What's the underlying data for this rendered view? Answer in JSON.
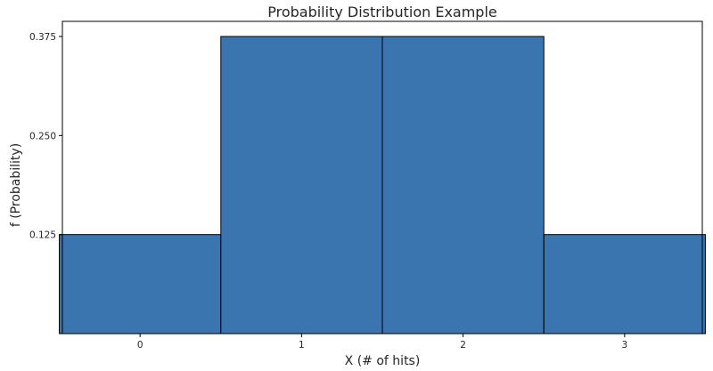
{
  "chart_data": {
    "type": "bar",
    "title": "Probability Distribution Example",
    "xlabel": "X (# of hits)",
    "ylabel": "f (Probability)",
    "categories": [
      "0",
      "1",
      "2",
      "3"
    ],
    "x": [
      0,
      1,
      2,
      3
    ],
    "values": [
      0.125,
      0.375,
      0.375,
      0.125
    ],
    "xlim": [
      -0.5,
      3.5
    ],
    "ylim": [
      0,
      0.375
    ],
    "xticks": [
      "0",
      "1",
      "2",
      "3"
    ],
    "yticks": [
      "0.125",
      "0.250",
      "0.375"
    ],
    "bar_color": "#3a75b0",
    "edge_color": "#000000",
    "grid": false
  }
}
